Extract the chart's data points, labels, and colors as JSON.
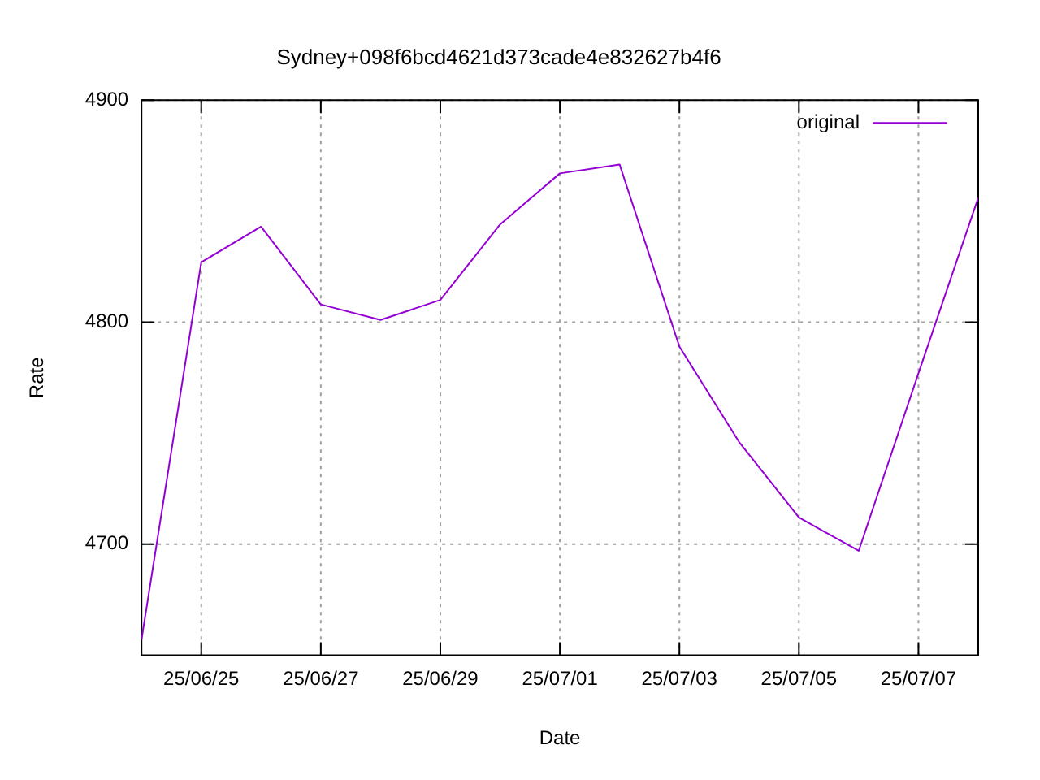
{
  "chart_data": {
    "type": "line",
    "title": "Sydney+098f6bcd4621d373cade4e832627b4f6",
    "xlabel": "Date",
    "ylabel": "Rate",
    "x": [
      "--06-24",
      "--06-25",
      "--06-26",
      "--06-27",
      "--06-28",
      "--06-29",
      "--06-30",
      "--07-01",
      "--07-02",
      "--07-03",
      "--07-04",
      "--07-05",
      "--07-06",
      "--07-07",
      "--07-08"
    ],
    "series": [
      {
        "name": "original",
        "color": "#9400d3",
        "values": [
          4657,
          4827,
          4843,
          4808,
          4801,
          4810,
          4844,
          4867,
          4871,
          4789,
          4746,
          4712,
          4697,
          4777,
          4856
        ]
      }
    ],
    "xlim": [
      "--06-24",
      "--07-08"
    ],
    "xticks": [
      {
        "value": "--06-25",
        "label": "25/06/25"
      },
      {
        "value": "--06-27",
        "label": "25/06/27"
      },
      {
        "value": "--06-29",
        "label": "25/06/29"
      },
      {
        "value": "--07-01",
        "label": "25/07/01"
      },
      {
        "value": "--07-03",
        "label": "25/07/03"
      },
      {
        "value": "--07-05",
        "label": "25/07/05"
      },
      {
        "value": "--07-07",
        "label": "25/07/07"
      }
    ],
    "ylim": [
      4650,
      4900
    ],
    "yticks": [
      4700,
      4800,
      4900
    ],
    "grid": true,
    "legend": "top right",
    "marker": "none",
    "line_style": "solid"
  }
}
